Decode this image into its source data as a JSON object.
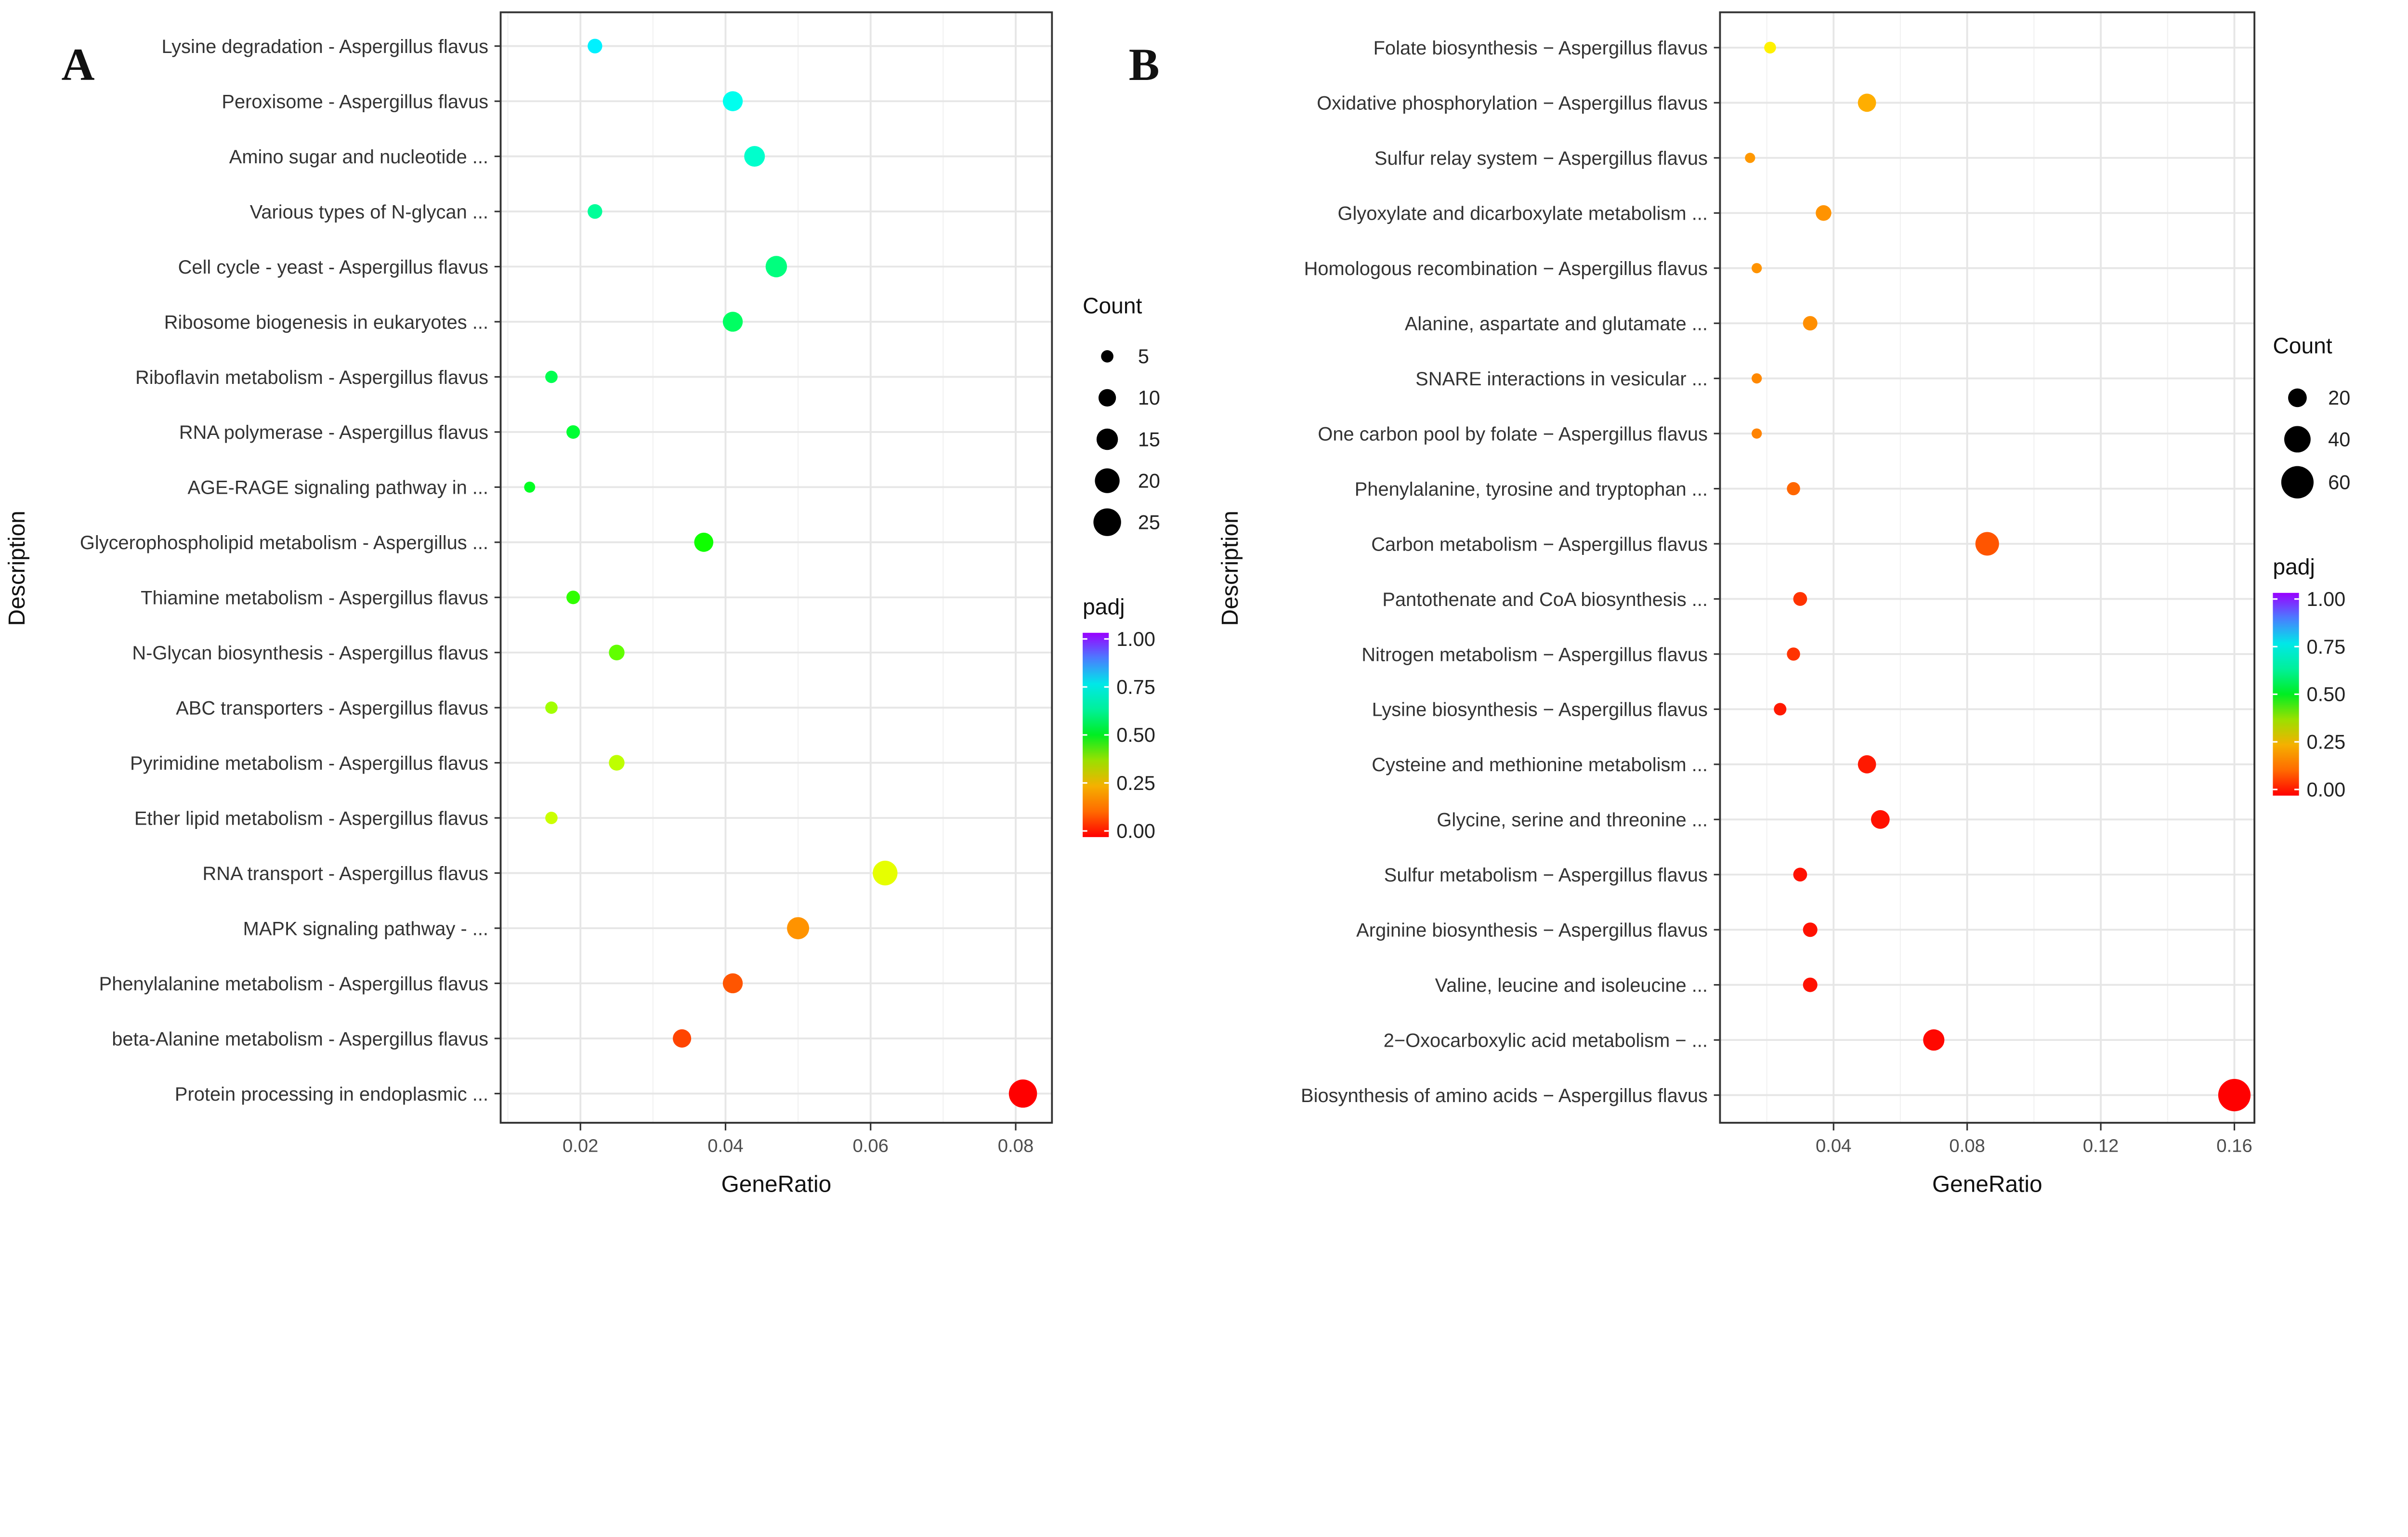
{
  "chart_data": [
    {
      "panel_label": "A",
      "type": "scatter",
      "xlabel": "GeneRatio",
      "ylabel": "Description",
      "xlim": [
        0.009,
        0.085
      ],
      "xticks": [
        0.02,
        0.04,
        0.06,
        0.08
      ],
      "xtick_labels": [
        "0.02",
        "0.04",
        "0.06",
        "0.08"
      ],
      "grid": true,
      "legend_position": "right",
      "size_legend": {
        "title": "Count",
        "values": [
          5,
          10,
          15,
          20,
          25
        ],
        "labels": [
          "5",
          "10",
          "15",
          "20",
          "25"
        ]
      },
      "color_legend": {
        "title": "padj",
        "range": [
          0,
          1
        ],
        "labels": [
          "1.00",
          "0.75",
          "0.50",
          "0.25",
          "0.00"
        ]
      },
      "categories": [
        "Lysine degradation - Aspergillus flavus",
        "Peroxisome - Aspergillus flavus",
        "Amino sugar and nucleotide ...",
        "Various types of N-glycan ...",
        "Cell cycle - yeast - Aspergillus flavus",
        "Ribosome biogenesis in eukaryotes ...",
        "Riboflavin metabolism - Aspergillus flavus",
        "RNA polymerase - Aspergillus flavus",
        "AGE-RAGE signaling pathway in ...",
        "Glycerophospholipid metabolism - Aspergillus ...",
        "Thiamine metabolism - Aspergillus flavus",
        "N-Glycan biosynthesis - Aspergillus flavus",
        "ABC transporters - Aspergillus flavus",
        "Pyrimidine metabolism - Aspergillus flavus",
        "Ether lipid metabolism - Aspergillus flavus",
        "RNA transport - Aspergillus flavus",
        "MAPK signaling pathway - ...",
        "Phenylalanine metabolism - Aspergillus flavus",
        "beta-Alanine metabolism - Aspergillus flavus",
        "Protein processing in endoplasmic ..."
      ],
      "gene_ratio": [
        0.022,
        0.041,
        0.044,
        0.022,
        0.047,
        0.041,
        0.016,
        0.019,
        0.013,
        0.037,
        0.019,
        0.025,
        0.016,
        0.025,
        0.016,
        0.062,
        0.05,
        0.041,
        0.034,
        0.081
      ],
      "count": [
        7,
        13,
        14,
        7,
        15,
        13,
        5,
        6,
        4,
        12,
        6,
        8,
        5,
        8,
        5,
        20,
        16,
        13,
        11,
        26
      ],
      "padj": [
        0.76,
        0.73,
        0.69,
        0.63,
        0.6,
        0.57,
        0.55,
        0.52,
        0.5,
        0.47,
        0.45,
        0.42,
        0.38,
        0.36,
        0.35,
        0.33,
        0.2,
        0.1,
        0.08,
        0.0
      ]
    },
    {
      "panel_label": "B",
      "type": "scatter",
      "xlabel": "GeneRatio",
      "ylabel": "Description",
      "xlim": [
        0.006,
        0.166
      ],
      "xticks": [
        0.04,
        0.08,
        0.12,
        0.16
      ],
      "xtick_labels": [
        "0.04",
        "0.08",
        "0.12",
        "0.16"
      ],
      "grid": true,
      "legend_position": "right",
      "size_legend": {
        "title": "Count",
        "values": [
          20,
          40,
          60
        ],
        "labels": [
          "20",
          "40",
          "60"
        ]
      },
      "color_legend": {
        "title": "padj",
        "range": [
          0,
          1
        ],
        "labels": [
          "1.00",
          "0.75",
          "0.50",
          "0.25",
          "0.00"
        ]
      },
      "categories": [
        "Folate biosynthesis − Aspergillus flavus",
        "Oxidative phosphorylation − Aspergillus flavus",
        "Sulfur relay system − Aspergillus flavus",
        "Glyoxylate and dicarboxylate metabolism ...",
        "Homologous recombination − Aspergillus flavus",
        "Alanine, aspartate and glutamate ...",
        "SNARE interactions in vesicular ...",
        "One carbon pool by folate − Aspergillus flavus",
        "Phenylalanine, tyrosine and tryptophan ...",
        "Carbon metabolism − Aspergillus flavus",
        "Pantothenate and CoA biosynthesis ...",
        "Nitrogen metabolism − Aspergillus flavus",
        "Lysine biosynthesis − Aspergillus flavus",
        "Cysteine and methionine metabolism ...",
        "Glycine, serine and threonine ...",
        "Sulfur metabolism − Aspergillus flavus",
        "Arginine biosynthesis − Aspergillus flavus",
        "Valine, leucine and isoleucine ...",
        "2−Oxocarboxylic acid metabolism − ...",
        "Biosynthesis of amino acids − Aspergillus flavus"
      ],
      "gene_ratio": [
        0.021,
        0.05,
        0.015,
        0.037,
        0.017,
        0.033,
        0.017,
        0.017,
        0.028,
        0.086,
        0.03,
        0.028,
        0.024,
        0.05,
        0.054,
        0.03,
        0.033,
        0.033,
        0.07,
        0.16
      ],
      "count": [
        8,
        19,
        6,
        14,
        6,
        12,
        6,
        6,
        10,
        32,
        11,
        10,
        9,
        19,
        20,
        11,
        12,
        12,
        26,
        60
      ],
      "padj": [
        0.3,
        0.25,
        0.21,
        0.2,
        0.2,
        0.19,
        0.18,
        0.17,
        0.12,
        0.1,
        0.06,
        0.06,
        0.03,
        0.03,
        0.02,
        0.02,
        0.02,
        0.02,
        0.01,
        0.0
      ]
    }
  ]
}
